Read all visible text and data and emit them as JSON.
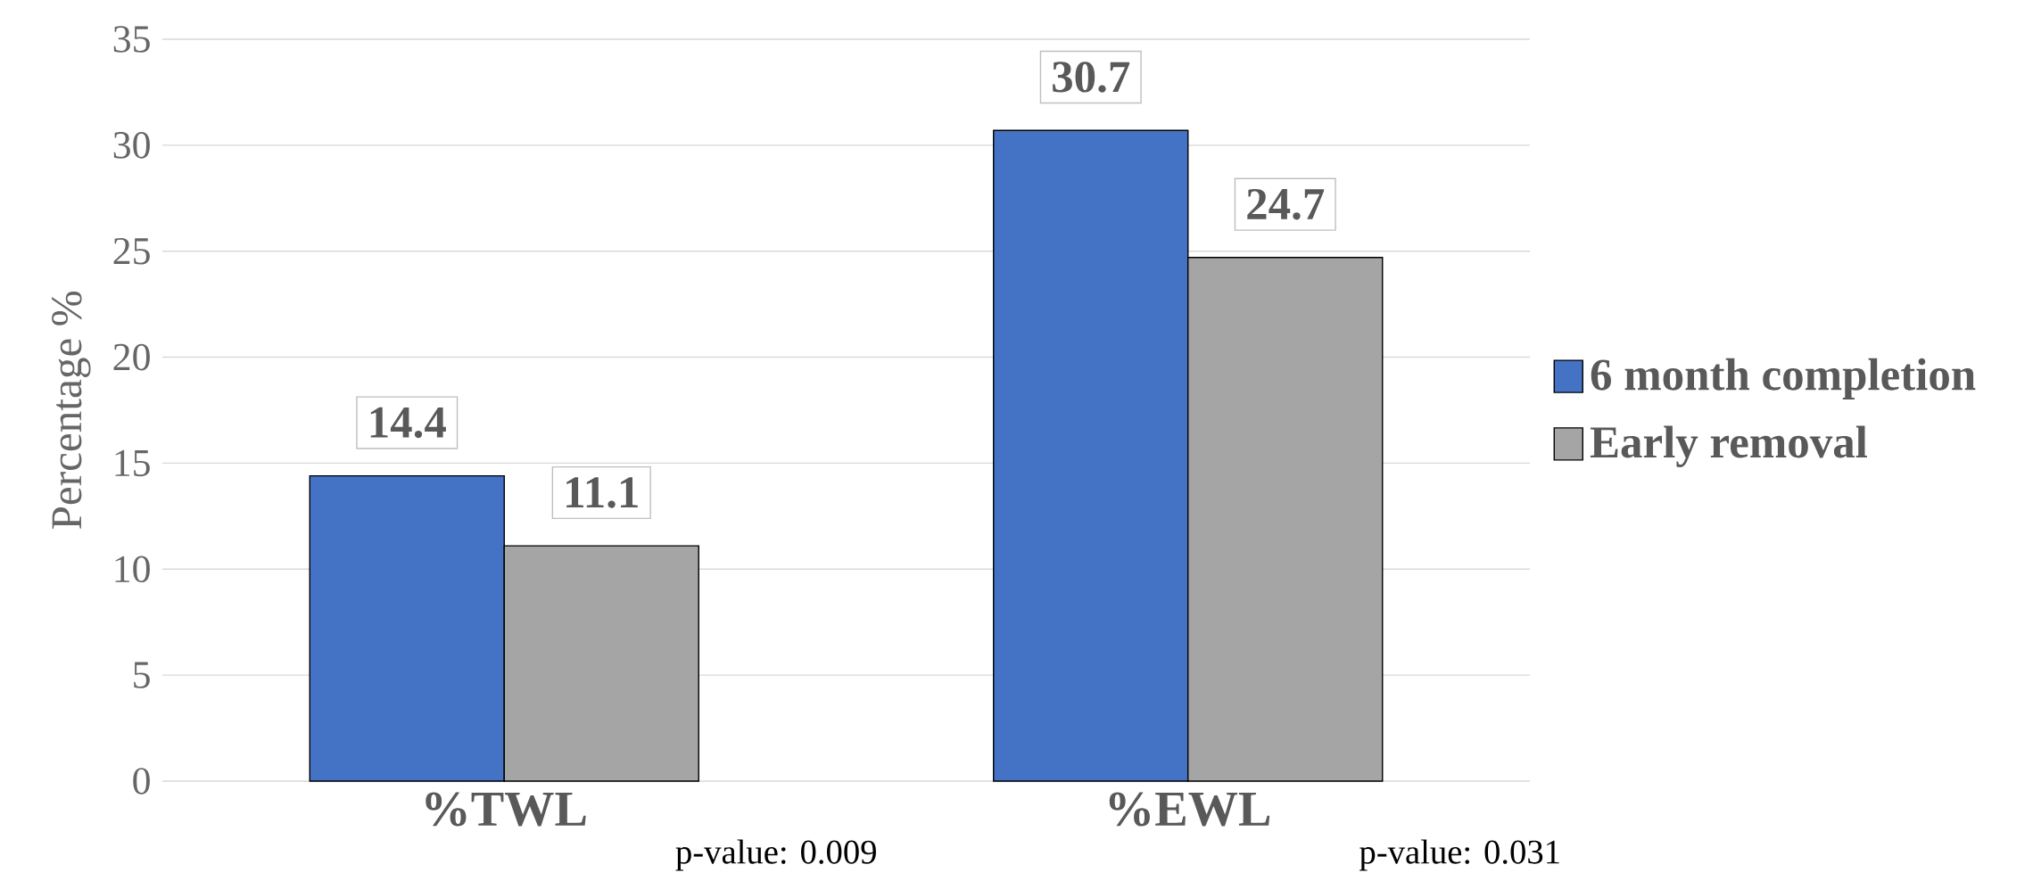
{
  "chart_data": {
    "type": "bar",
    "ylabel": "Percentage %",
    "categories": [
      "%TWL",
      "%EWL"
    ],
    "series": [
      {
        "name": "6 month completion",
        "color": "#4472c4",
        "values": [
          14.4,
          30.7
        ]
      },
      {
        "name": "Early removal",
        "color": "#a5a5a5",
        "values": [
          11.1,
          24.7
        ]
      }
    ],
    "ylim": [
      0,
      35
    ],
    "yticks": [
      0,
      5,
      10,
      15,
      20,
      25,
      30,
      35
    ],
    "grid": "y",
    "legend": "right",
    "data_labels": true,
    "annotations": [
      "p-value: 0.009",
      "p-value: 0.031"
    ]
  }
}
